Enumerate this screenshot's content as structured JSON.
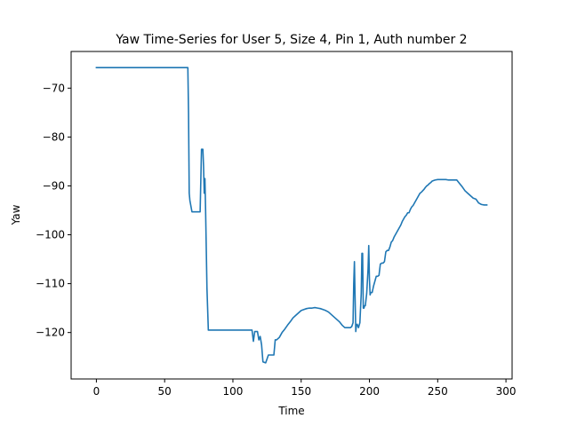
{
  "chart_data": {
    "type": "line",
    "title": "Yaw Time-Series for User 5, Size 4, Pin 1, Auth number 2",
    "xlabel": "Time",
    "ylabel": "Yaw",
    "xlim": [
      -18.5,
      304.5
    ],
    "ylim": [
      -129.5,
      -62.5
    ],
    "xticks": [
      0,
      50,
      100,
      150,
      200,
      250,
      300
    ],
    "yticks": [
      -120,
      -110,
      -100,
      -90,
      -80,
      -70
    ],
    "tick_labels_x": [
      "0",
      "50",
      "100",
      "150",
      "200",
      "250",
      "300"
    ],
    "tick_labels_y": [
      "−120",
      "−110",
      "−100",
      "−90",
      "−80",
      "−70"
    ],
    "grid": false,
    "series": [
      {
        "color": "#1f77b4",
        "x": [
          0,
          10,
          20,
          30,
          40,
          50,
          60,
          67,
          67.5,
          68,
          68.5,
          70,
          72,
          74,
          75,
          76,
          77,
          78,
          78.5,
          79,
          79.5,
          80,
          81,
          82,
          90,
          100,
          110,
          113,
          114,
          115,
          116,
          117,
          118,
          119,
          120,
          121,
          122,
          124,
          126,
          128,
          130,
          131,
          132,
          134,
          136,
          138,
          140,
          142,
          144,
          146,
          148,
          150,
          152,
          154,
          156,
          158,
          160,
          162,
          164,
          166,
          168,
          170,
          172,
          174,
          176,
          178,
          180,
          182,
          184,
          186,
          187,
          188,
          188.5,
          189,
          189.5,
          190,
          190.5,
          191,
          192,
          193,
          194,
          194.5,
          195,
          195.5,
          196,
          196.5,
          197,
          198,
          199,
          199.5,
          200,
          200.5,
          201,
          202,
          203,
          204,
          205,
          206,
          207,
          208,
          209,
          210,
          211,
          212,
          213,
          214,
          215,
          216,
          217,
          218,
          219,
          220,
          221,
          222,
          223,
          224,
          225,
          226,
          227,
          228,
          229,
          230,
          231,
          232,
          233,
          234,
          235,
          236,
          237,
          238,
          239,
          240,
          241,
          242,
          243,
          244,
          245,
          246,
          248,
          250,
          252,
          254,
          256,
          258,
          260,
          262,
          264,
          266,
          268,
          270,
          272,
          274,
          276,
          278,
          280,
          282,
          284,
          286
        ],
        "y": [
          -65.8,
          -65.8,
          -65.8,
          -65.8,
          -65.8,
          -65.8,
          -65.8,
          -65.8,
          -75,
          -91.5,
          -93,
          -95.3,
          -95.3,
          -95.3,
          -95.3,
          -95.3,
          -82.5,
          -82.5,
          -86,
          -91.5,
          -88.5,
          -95,
          -111,
          -119.5,
          -119.5,
          -119.5,
          -119.5,
          -119.5,
          -119.5,
          -121.8,
          -119.8,
          -119.8,
          -119.8,
          -121.5,
          -120.8,
          -122.5,
          -126,
          -126.2,
          -124.6,
          -124.6,
          -124.6,
          -121.5,
          -121.5,
          -121,
          -120,
          -119.3,
          -118.5,
          -117.8,
          -117,
          -116.5,
          -116,
          -115.5,
          -115.3,
          -115.1,
          -115,
          -115,
          -114.9,
          -115,
          -115.1,
          -115.3,
          -115.5,
          -115.8,
          -116.3,
          -116.8,
          -117.3,
          -117.8,
          -118.5,
          -119,
          -119,
          -119,
          -118.8,
          -118,
          -110,
          -105.5,
          -113,
          -119.8,
          -118.5,
          -118.3,
          -119,
          -118,
          -112,
          -103.8,
          -103.8,
          -115,
          -115,
          -114.5,
          -114.5,
          -112,
          -107,
          -102.2,
          -109,
          -112.3,
          -111.8,
          -111.8,
          -110.5,
          -109.5,
          -108.5,
          -108.5,
          -108.3,
          -106,
          -105.8,
          -105.8,
          -105.5,
          -103.5,
          -103.2,
          -103.2,
          -102.5,
          -101.5,
          -101.2,
          -100.5,
          -100,
          -99.5,
          -99,
          -98.5,
          -98,
          -97.3,
          -96.8,
          -96.3,
          -96,
          -95.5,
          -95.5,
          -94.8,
          -94.3,
          -94,
          -93.5,
          -93,
          -92.5,
          -92,
          -91.5,
          -91.3,
          -91,
          -90.7,
          -90.3,
          -90,
          -89.8,
          -89.5,
          -89.3,
          -89,
          -88.8,
          -88.7,
          -88.7,
          -88.7,
          -88.7,
          -88.8,
          -88.8,
          -88.8,
          -88.8,
          -89.5,
          -90.2,
          -91,
          -91.5,
          -92,
          -92.5,
          -92.7,
          -93.5,
          -93.8,
          -93.9,
          -93.9
        ]
      }
    ]
  }
}
